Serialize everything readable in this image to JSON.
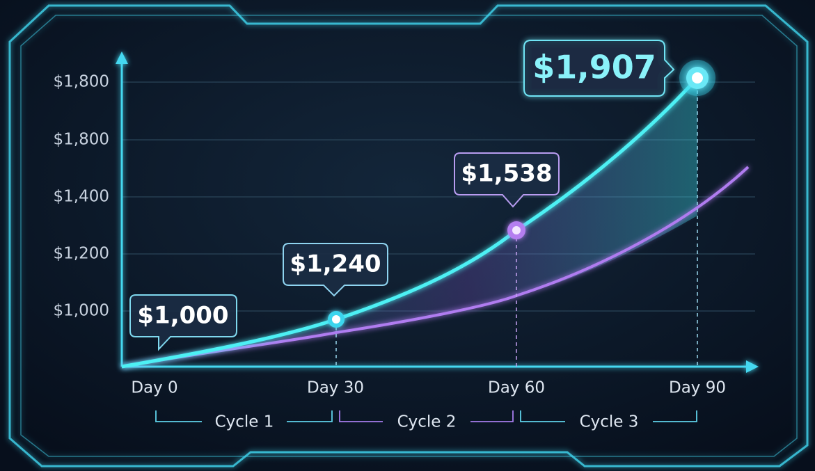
{
  "y_axis": {
    "labels": [
      "$1,800",
      "$1,800",
      "$1,400",
      "$1,200",
      "$1,000"
    ]
  },
  "x_axis": {
    "labels": [
      "Day 0",
      "Day 30",
      "Day 60",
      "Day 90"
    ]
  },
  "cycles": [
    "Cycle 1",
    "Cycle 2",
    "Cycle 3"
  ],
  "callouts": [
    "$1,000",
    "$1,240",
    "$1,538",
    "$1,907"
  ]
}
